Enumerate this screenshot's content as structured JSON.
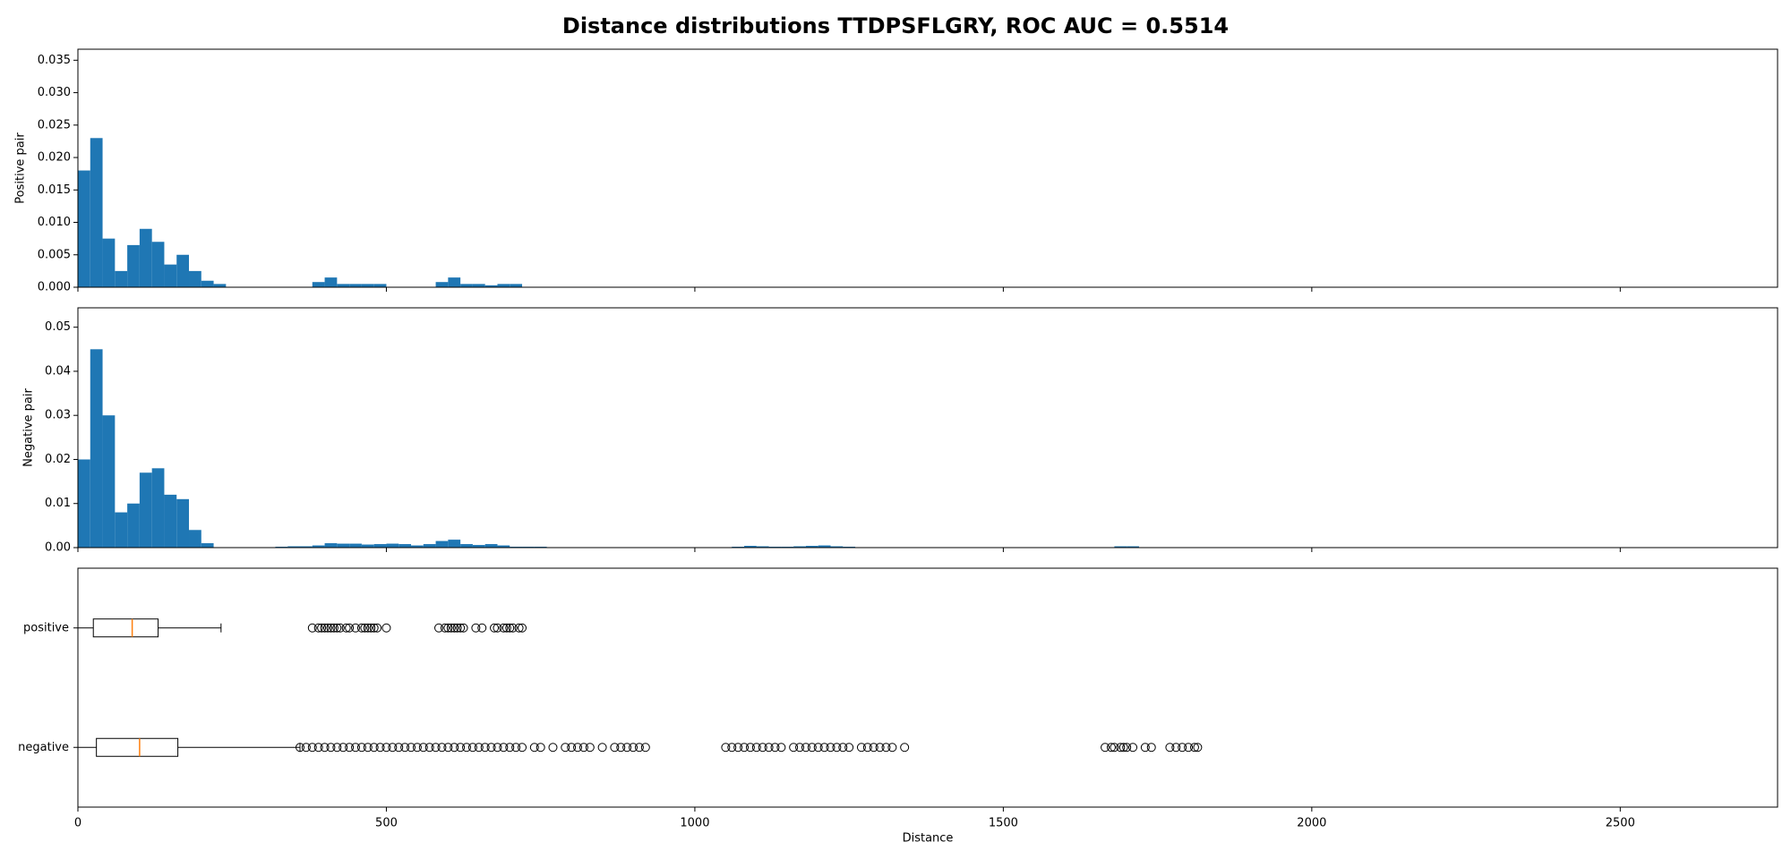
{
  "chart_data": [
    {
      "type": "histogram",
      "title": "Distance distributions TTDPSFLGRY, ROC AUC = 0.5514",
      "ylabel": "Positive pair",
      "color": "#1f77b4",
      "bins": [
        0,
        20,
        40,
        60,
        80,
        100,
        120,
        140,
        160,
        180,
        200,
        220,
        240,
        260,
        280,
        300,
        320,
        340,
        360,
        380,
        400,
        420,
        440,
        460,
        480,
        500,
        520,
        540,
        560,
        580,
        600,
        620,
        640,
        660,
        680,
        700,
        720
      ],
      "values": [
        0.018,
        0.023,
        0.0075,
        0.0025,
        0.0065,
        0.009,
        0.007,
        0.0035,
        0.005,
        0.0025,
        0.001,
        0.0005,
        0,
        0,
        0,
        0,
        0,
        0,
        0,
        0.0008,
        0.0015,
        0.0005,
        0.0005,
        0.0005,
        0.0005,
        0,
        0,
        0,
        0,
        0.0008,
        0.0015,
        0.0005,
        0.0005,
        0.0003,
        0.0005,
        0.0005
      ],
      "xlim": [
        0,
        2755
      ],
      "xticks": [
        0,
        500,
        1000,
        1500,
        2000,
        2500
      ],
      "ylim": [
        0,
        0.0367
      ],
      "yticks": [
        {
          "value": 0,
          "label": "0.000"
        },
        {
          "value": 0.005,
          "label": "0.005"
        },
        {
          "value": 0.01,
          "label": "0.010"
        },
        {
          "value": 0.015,
          "label": "0.015"
        },
        {
          "value": 0.02,
          "label": "0.020"
        },
        {
          "value": 0.025,
          "label": "0.025"
        },
        {
          "value": 0.03,
          "label": "0.030"
        },
        {
          "value": 0.035,
          "label": "0.035"
        }
      ]
    },
    {
      "type": "histogram",
      "ylabel": "Negative pair",
      "color": "#1f77b4",
      "bins": [
        0,
        20,
        40,
        60,
        80,
        100,
        120,
        140,
        160,
        180,
        200,
        220,
        240,
        260,
        280,
        300,
        320,
        340,
        360,
        380,
        400,
        420,
        440,
        460,
        480,
        500,
        520,
        540,
        560,
        580,
        600,
        620,
        640,
        660,
        680,
        700,
        720,
        740,
        760,
        780,
        800,
        820,
        840,
        860,
        880,
        900,
        920,
        940,
        960,
        980,
        1000,
        1020,
        1040,
        1060,
        1080,
        1100,
        1120,
        1140,
        1160,
        1180,
        1200,
        1220,
        1240,
        1260,
        1280,
        1300,
        1320,
        1340,
        1360,
        1380,
        1400,
        1420,
        1440,
        1460,
        1480,
        1500,
        1520,
        1540,
        1560,
        1580,
        1600,
        1620,
        1640,
        1660,
        1680,
        1700,
        1720,
        1740,
        1760,
        1780,
        1800,
        1820
      ],
      "values": [
        0.02,
        0.045,
        0.03,
        0.008,
        0.01,
        0.017,
        0.018,
        0.012,
        0.011,
        0.004,
        0.001,
        0,
        0,
        0,
        0,
        0.0001,
        0.0002,
        0.0003,
        0.0003,
        0.0005,
        0.001,
        0.0009,
        0.0009,
        0.0007,
        0.0008,
        0.0009,
        0.0008,
        0.0005,
        0.0008,
        0.0015,
        0.0018,
        0.0008,
        0.0006,
        0.0008,
        0.0005,
        0.0002,
        0.0002,
        0.0002,
        0.0001,
        0.0001,
        0.0001,
        0.0001,
        0.0001,
        0.0001,
        0.0001,
        0.0001,
        0,
        0,
        0,
        0,
        0,
        0,
        0,
        0.0002,
        0.0004,
        0.0003,
        0.0002,
        0.0002,
        0.0003,
        0.0004,
        0.0005,
        0.0003,
        0.0002,
        0.0001,
        0.0001,
        0.0001,
        0.0001,
        0,
        0,
        0,
        0,
        0,
        0,
        0,
        0,
        0,
        0,
        0,
        0,
        0,
        0,
        0,
        0,
        0.0001,
        0.0003,
        0.0003,
        0.0001,
        0.0001,
        0.0001,
        0.0001,
        0.0001
      ],
      "xlim": [
        0,
        2755
      ],
      "xticks": [
        0,
        500,
        1000,
        1500,
        2000,
        2500
      ],
      "ylim": [
        0,
        0.0544
      ],
      "yticks": [
        {
          "value": 0,
          "label": "0.00"
        },
        {
          "value": 0.01,
          "label": "0.01"
        },
        {
          "value": 0.02,
          "label": "0.02"
        },
        {
          "value": 0.03,
          "label": "0.03"
        },
        {
          "value": 0.04,
          "label": "0.04"
        },
        {
          "value": 0.05,
          "label": "0.05"
        }
      ]
    },
    {
      "type": "box",
      "xlabel": "Distance",
      "categories": [
        "positive",
        "negative"
      ],
      "median_color": "#ff7f0e",
      "boxes": [
        {
          "whislo": 0,
          "q1": 25,
          "med": 88,
          "q3": 130,
          "whishi": 232,
          "fliers": [
            380,
            390,
            395,
            400,
            405,
            410,
            415,
            420,
            425,
            435,
            440,
            450,
            460,
            465,
            470,
            475,
            480,
            485,
            500,
            585,
            595,
            600,
            605,
            610,
            615,
            620,
            625,
            645,
            655,
            675,
            680,
            690,
            695,
            700,
            705,
            715,
            720
          ]
        },
        {
          "whislo": 0,
          "q1": 30,
          "med": 100,
          "q3": 162,
          "whishi": 360,
          "fliers": [
            360,
            370,
            380,
            390,
            400,
            410,
            420,
            430,
            440,
            450,
            460,
            470,
            480,
            490,
            500,
            510,
            520,
            530,
            540,
            550,
            560,
            570,
            580,
            590,
            600,
            610,
            620,
            630,
            640,
            650,
            660,
            670,
            680,
            690,
            700,
            710,
            720,
            740,
            750,
            770,
            790,
            800,
            810,
            820,
            830,
            850,
            870,
            880,
            890,
            900,
            910,
            920,
            1050,
            1060,
            1070,
            1080,
            1090,
            1100,
            1110,
            1120,
            1130,
            1140,
            1160,
            1170,
            1180,
            1190,
            1200,
            1210,
            1220,
            1230,
            1240,
            1250,
            1270,
            1280,
            1290,
            1300,
            1310,
            1320,
            1340,
            1665,
            1675,
            1680,
            1690,
            1695,
            1700,
            1710,
            1730,
            1740,
            1770,
            1780,
            1790,
            1800,
            1810,
            1815
          ]
        }
      ],
      "xlim": [
        0,
        2755
      ],
      "xticks": [
        0,
        500,
        1000,
        1500,
        2000,
        2500
      ]
    }
  ]
}
